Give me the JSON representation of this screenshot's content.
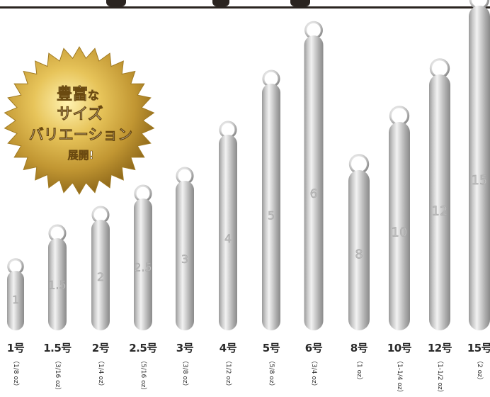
{
  "badge": {
    "line1_a": "豊富",
    "line1_b": "な",
    "line2": "サイズ",
    "line3": "バリエーション",
    "line4": "展開!"
  },
  "sinkers": [
    {
      "size": "1号",
      "oz": "（1/8 oz）",
      "number": "1"
    },
    {
      "size": "1.5号",
      "oz": "（3/16 oz）",
      "number": "1.5"
    },
    {
      "size": "2号",
      "oz": "（1/4 oz）",
      "number": "2"
    },
    {
      "size": "2.5号",
      "oz": "（5/16 oz）",
      "number": "2.5"
    },
    {
      "size": "3号",
      "oz": "（3/8 oz）",
      "number": "3"
    },
    {
      "size": "4号",
      "oz": "（1/2 oz）",
      "number": "4"
    },
    {
      "size": "5号",
      "oz": "（5/8 oz）",
      "number": "5"
    },
    {
      "size": "6号",
      "oz": "（3/4 oz）",
      "number": "6"
    },
    {
      "size": "8号",
      "oz": "（1 oz）",
      "number": "8"
    },
    {
      "size": "10号",
      "oz": "（1-1/4 oz）",
      "number": "10"
    },
    {
      "size": "12号",
      "oz": "（1-1/2 oz）",
      "number": "12"
    },
    {
      "size": "15号",
      "oz": "（2 oz）",
      "number": "15"
    }
  ]
}
